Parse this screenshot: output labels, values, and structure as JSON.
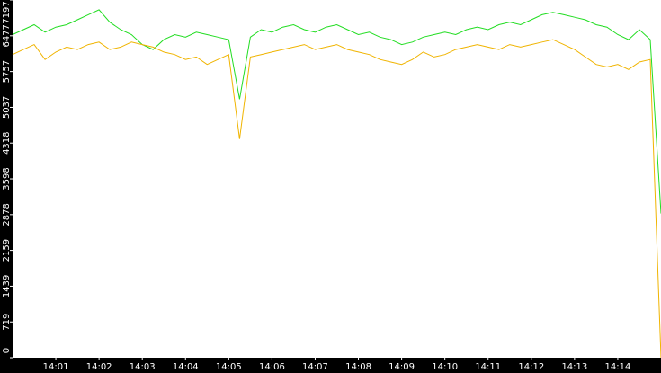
{
  "chart_data": {
    "type": "line",
    "x": [
      840,
      840.25,
      840.5,
      840.75,
      841,
      841.25,
      841.5,
      841.75,
      842,
      842.25,
      842.5,
      842.75,
      843,
      843.25,
      843.5,
      843.75,
      844,
      844.25,
      844.5,
      844.75,
      845,
      845.25,
      845.5,
      845.75,
      846,
      846.25,
      846.5,
      846.75,
      847,
      847.25,
      847.5,
      847.75,
      848,
      848.25,
      848.5,
      848.75,
      849,
      849.25,
      849.5,
      849.75,
      850,
      850.25,
      850.5,
      850.75,
      851,
      851.25,
      851.5,
      851.75,
      852,
      852.25,
      852.5,
      852.75,
      853,
      853.25,
      853.5,
      853.75,
      854,
      854.25,
      854.5,
      854.75,
      855
    ],
    "series": [
      {
        "color": "#22dd22",
        "values": [
          6500,
          6600,
          6700,
          6550,
          6650,
          6700,
          6800,
          6900,
          7000,
          6750,
          6600,
          6500,
          6300,
          6200,
          6400,
          6500,
          6450,
          6550,
          6500,
          6450,
          6400,
          5200,
          6450,
          6600,
          6550,
          6650,
          6700,
          6600,
          6550,
          6650,
          6700,
          6600,
          6500,
          6550,
          6450,
          6400,
          6300,
          6350,
          6450,
          6500,
          6550,
          6500,
          6600,
          6650,
          6600,
          6700,
          6750,
          6700,
          6800,
          6900,
          6950,
          6900,
          6850,
          6800,
          6700,
          6650,
          6500,
          6400,
          6600,
          6400,
          2900
        ]
      },
      {
        "color": "#f0b400",
        "values": [
          6100,
          6200,
          6300,
          6000,
          6150,
          6250,
          6200,
          6300,
          6350,
          6200,
          6250,
          6350,
          6300,
          6250,
          6150,
          6100,
          6000,
          6050,
          5900,
          6000,
          6100,
          4400,
          6050,
          6100,
          6150,
          6200,
          6250,
          6300,
          6200,
          6250,
          6300,
          6200,
          6150,
          6100,
          6000,
          5950,
          5900,
          6000,
          6150,
          6050,
          6100,
          6200,
          6250,
          6300,
          6250,
          6200,
          6300,
          6250,
          6300,
          6350,
          6400,
          6300,
          6200,
          6050,
          5900,
          5850,
          5900,
          5800,
          5950,
          6000,
          0
        ]
      }
    ],
    "xlim": [
      840,
      855
    ],
    "xticks": [
      {
        "value": 841,
        "label": "14:01"
      },
      {
        "value": 842,
        "label": "14:02"
      },
      {
        "value": 843,
        "label": "14:03"
      },
      {
        "value": 844,
        "label": "14:04"
      },
      {
        "value": 845,
        "label": "14:05"
      },
      {
        "value": 846,
        "label": "14:06"
      },
      {
        "value": 847,
        "label": "14:07"
      },
      {
        "value": 848,
        "label": "14:08"
      },
      {
        "value": 849,
        "label": "14:09"
      },
      {
        "value": 850,
        "label": "14:10"
      },
      {
        "value": 851,
        "label": "14:11"
      },
      {
        "value": 852,
        "label": "14:12"
      },
      {
        "value": 853,
        "label": "14:13"
      },
      {
        "value": 854,
        "label": "14:14"
      }
    ],
    "ylim": [
      0,
      7197
    ],
    "yticks": [
      0,
      719,
      1439,
      2159,
      2878,
      3598,
      4318,
      5037,
      5757,
      6477,
      7197
    ]
  }
}
